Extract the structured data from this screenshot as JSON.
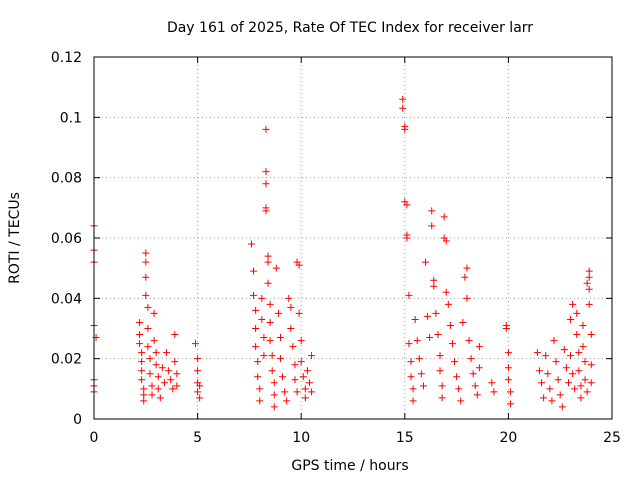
{
  "chart_data": {
    "type": "scatter",
    "title": "Day 161 of 2025, Rate Of TEC Index for receiver larr",
    "xlabel": "GPS time / hours",
    "ylabel": "ROTI / TECUs",
    "xlim": [
      0,
      25
    ],
    "ylim": [
      0,
      0.12
    ],
    "x_ticks": [
      0,
      5,
      10,
      15,
      20,
      25
    ],
    "x_tick_labels": [
      "0",
      "5",
      "10",
      "15",
      "20",
      "25"
    ],
    "y_ticks": [
      0,
      0.02,
      0.04,
      0.06,
      0.08,
      0.1,
      0.12
    ],
    "y_tick_labels": [
      "0",
      "0.02",
      "0.04",
      "0.06",
      "0.08",
      "0.1",
      "0.12"
    ],
    "grid": true,
    "marker": "+",
    "marker_color": "#ff0000",
    "series": [
      {
        "points": [
          [
            0.0,
            0.064
          ],
          [
            0.0,
            0.056
          ],
          [
            0.0,
            0.052
          ],
          [
            0.0,
            0.031
          ],
          [
            0.0,
            0.013
          ],
          [
            0.0,
            0.011
          ],
          [
            0.0,
            0.009
          ],
          [
            0.1,
            0.027
          ],
          [
            2.2,
            0.032
          ],
          [
            2.2,
            0.028
          ],
          [
            2.2,
            0.025
          ],
          [
            2.3,
            0.022
          ],
          [
            2.3,
            0.019
          ],
          [
            2.3,
            0.016
          ],
          [
            2.3,
            0.013
          ],
          [
            2.4,
            0.01
          ],
          [
            2.4,
            0.008
          ],
          [
            2.4,
            0.006
          ],
          [
            2.5,
            0.055
          ],
          [
            2.5,
            0.052
          ],
          [
            2.5,
            0.047
          ],
          [
            2.5,
            0.041
          ],
          [
            2.6,
            0.037
          ],
          [
            2.6,
            0.03
          ],
          [
            2.6,
            0.024
          ],
          [
            2.7,
            0.02
          ],
          [
            2.7,
            0.015
          ],
          [
            2.8,
            0.011
          ],
          [
            2.8,
            0.008
          ],
          [
            2.9,
            0.035
          ],
          [
            2.9,
            0.026
          ],
          [
            3.0,
            0.022
          ],
          [
            3.0,
            0.018
          ],
          [
            3.1,
            0.014
          ],
          [
            3.1,
            0.01
          ],
          [
            3.2,
            0.007
          ],
          [
            3.3,
            0.017
          ],
          [
            3.4,
            0.012
          ],
          [
            3.5,
            0.022
          ],
          [
            3.6,
            0.016
          ],
          [
            3.7,
            0.013
          ],
          [
            3.8,
            0.01
          ],
          [
            3.9,
            0.028
          ],
          [
            3.9,
            0.019
          ],
          [
            4.0,
            0.015
          ],
          [
            4.0,
            0.011
          ],
          [
            4.9,
            0.025
          ],
          [
            5.0,
            0.02
          ],
          [
            5.0,
            0.016
          ],
          [
            5.0,
            0.012
          ],
          [
            5.0,
            0.009
          ],
          [
            5.1,
            0.011
          ],
          [
            5.1,
            0.007
          ],
          [
            7.6,
            0.058
          ],
          [
            7.7,
            0.049
          ],
          [
            7.7,
            0.041
          ],
          [
            7.8,
            0.036
          ],
          [
            7.8,
            0.03
          ],
          [
            7.8,
            0.024
          ],
          [
            7.9,
            0.019
          ],
          [
            7.9,
            0.014
          ],
          [
            8.0,
            0.01
          ],
          [
            8.0,
            0.006
          ],
          [
            8.1,
            0.04
          ],
          [
            8.1,
            0.033
          ],
          [
            8.2,
            0.027
          ],
          [
            8.2,
            0.021
          ],
          [
            8.3,
            0.096
          ],
          [
            8.3,
            0.082
          ],
          [
            8.3,
            0.078
          ],
          [
            8.3,
            0.07
          ],
          [
            8.3,
            0.069
          ],
          [
            8.4,
            0.054
          ],
          [
            8.4,
            0.052
          ],
          [
            8.4,
            0.045
          ],
          [
            8.5,
            0.038
          ],
          [
            8.5,
            0.032
          ],
          [
            8.5,
            0.026
          ],
          [
            8.6,
            0.021
          ],
          [
            8.6,
            0.016
          ],
          [
            8.7,
            0.012
          ],
          [
            8.7,
            0.008
          ],
          [
            8.7,
            0.004
          ],
          [
            8.8,
            0.05
          ],
          [
            8.9,
            0.035
          ],
          [
            9.0,
            0.027
          ],
          [
            9.0,
            0.02
          ],
          [
            9.1,
            0.014
          ],
          [
            9.2,
            0.009
          ],
          [
            9.3,
            0.006
          ],
          [
            9.4,
            0.04
          ],
          [
            9.5,
            0.037
          ],
          [
            9.5,
            0.03
          ],
          [
            9.6,
            0.024
          ],
          [
            9.7,
            0.018
          ],
          [
            9.7,
            0.013
          ],
          [
            9.8,
            0.009
          ],
          [
            9.8,
            0.052
          ],
          [
            9.9,
            0.051
          ],
          [
            9.9,
            0.035
          ],
          [
            10.0,
            0.026
          ],
          [
            10.0,
            0.019
          ],
          [
            10.1,
            0.014
          ],
          [
            10.2,
            0.01
          ],
          [
            10.2,
            0.007
          ],
          [
            10.3,
            0.016
          ],
          [
            10.4,
            0.012
          ],
          [
            10.5,
            0.021
          ],
          [
            10.5,
            0.009
          ],
          [
            14.9,
            0.106
          ],
          [
            14.9,
            0.103
          ],
          [
            15.0,
            0.097
          ],
          [
            15.0,
            0.096
          ],
          [
            15.0,
            0.072
          ],
          [
            15.1,
            0.071
          ],
          [
            15.1,
            0.061
          ],
          [
            15.1,
            0.06
          ],
          [
            15.2,
            0.041
          ],
          [
            15.2,
            0.025
          ],
          [
            15.3,
            0.019
          ],
          [
            15.3,
            0.014
          ],
          [
            15.4,
            0.01
          ],
          [
            15.4,
            0.006
          ],
          [
            15.5,
            0.033
          ],
          [
            15.6,
            0.026
          ],
          [
            15.7,
            0.02
          ],
          [
            15.8,
            0.015
          ],
          [
            15.9,
            0.011
          ],
          [
            16.0,
            0.052
          ],
          [
            16.1,
            0.034
          ],
          [
            16.2,
            0.027
          ],
          [
            16.3,
            0.069
          ],
          [
            16.3,
            0.064
          ],
          [
            16.4,
            0.046
          ],
          [
            16.4,
            0.044
          ],
          [
            16.5,
            0.035
          ],
          [
            16.6,
            0.028
          ],
          [
            16.7,
            0.021
          ],
          [
            16.7,
            0.016
          ],
          [
            16.8,
            0.011
          ],
          [
            16.8,
            0.007
          ],
          [
            16.9,
            0.067
          ],
          [
            16.9,
            0.06
          ],
          [
            17.0,
            0.059
          ],
          [
            17.0,
            0.042
          ],
          [
            17.1,
            0.038
          ],
          [
            17.2,
            0.031
          ],
          [
            17.3,
            0.025
          ],
          [
            17.4,
            0.019
          ],
          [
            17.5,
            0.014
          ],
          [
            17.6,
            0.01
          ],
          [
            17.7,
            0.006
          ],
          [
            17.8,
            0.032
          ],
          [
            17.9,
            0.047
          ],
          [
            18.0,
            0.05
          ],
          [
            18.0,
            0.04
          ],
          [
            18.1,
            0.026
          ],
          [
            18.2,
            0.02
          ],
          [
            18.3,
            0.015
          ],
          [
            18.4,
            0.011
          ],
          [
            18.5,
            0.008
          ],
          [
            18.6,
            0.024
          ],
          [
            18.6,
            0.017
          ],
          [
            19.2,
            0.012
          ],
          [
            19.3,
            0.009
          ],
          [
            19.9,
            0.031
          ],
          [
            19.9,
            0.03
          ],
          [
            20.0,
            0.022
          ],
          [
            20.0,
            0.017
          ],
          [
            20.0,
            0.013
          ],
          [
            20.1,
            0.009
          ],
          [
            20.1,
            0.005
          ],
          [
            21.4,
            0.022
          ],
          [
            21.5,
            0.016
          ],
          [
            21.6,
            0.012
          ],
          [
            21.7,
            0.007
          ],
          [
            21.8,
            0.021
          ],
          [
            21.9,
            0.015
          ],
          [
            22.0,
            0.01
          ],
          [
            22.1,
            0.006
          ],
          [
            22.2,
            0.026
          ],
          [
            22.3,
            0.019
          ],
          [
            22.4,
            0.013
          ],
          [
            22.5,
            0.008
          ],
          [
            22.6,
            0.004
          ],
          [
            22.7,
            0.023
          ],
          [
            22.8,
            0.017
          ],
          [
            22.9,
            0.012
          ],
          [
            23.0,
            0.033
          ],
          [
            23.0,
            0.021
          ],
          [
            23.1,
            0.038
          ],
          [
            23.1,
            0.015
          ],
          [
            23.2,
            0.01
          ],
          [
            23.3,
            0.035
          ],
          [
            23.3,
            0.028
          ],
          [
            23.4,
            0.022
          ],
          [
            23.4,
            0.016
          ],
          [
            23.5,
            0.011
          ],
          [
            23.5,
            0.007
          ],
          [
            23.6,
            0.031
          ],
          [
            23.6,
            0.024
          ],
          [
            23.7,
            0.019
          ],
          [
            23.7,
            0.013
          ],
          [
            23.8,
            0.045
          ],
          [
            23.8,
            0.009
          ],
          [
            23.9,
            0.049
          ],
          [
            23.9,
            0.047
          ],
          [
            23.9,
            0.043
          ],
          [
            23.9,
            0.038
          ],
          [
            24.0,
            0.028
          ],
          [
            24.0,
            0.018
          ],
          [
            24.0,
            0.012
          ]
        ]
      }
    ]
  }
}
